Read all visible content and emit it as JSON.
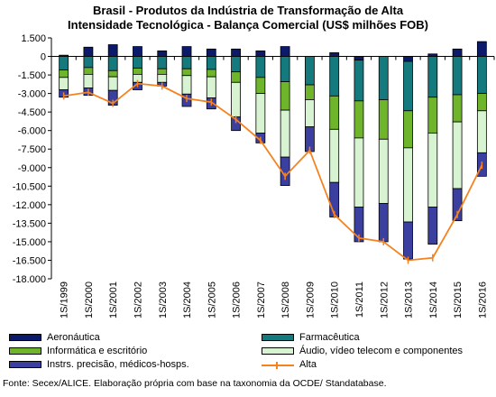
{
  "chart_data": {
    "type": "bar",
    "title": "Brasil - Produtos da Indústria de Transformação de Alta",
    "subtitle": "Intensidade Tecnológica - Balança Comercial (US$ milhões FOB)",
    "categories": [
      "1S/1999",
      "1S/2000",
      "1S/2001",
      "1S/2002",
      "1S/2003",
      "1S/2004",
      "1S/2005",
      "1S/2006",
      "1S/2007",
      "1S/2008",
      "1S/2009",
      "1S/2010",
      "1S/2011",
      "1S/2012",
      "1S/2013",
      "1S/2014",
      "1S/2015",
      "1S/2016"
    ],
    "ylim": [
      -18000,
      1500
    ],
    "yticks": [
      1500,
      0,
      -1500,
      -3000,
      -4500,
      -6000,
      -7500,
      -9000,
      -10500,
      -12000,
      -13500,
      -15000,
      -16500,
      -18000
    ],
    "ytick_labels": [
      "1.500",
      "0",
      "-1.500",
      "-3.000",
      "-4.500",
      "-6.000",
      "-7.500",
      "-9.000",
      "-10.500",
      "-12.000",
      "-13.500",
      "-15.000",
      "-16.500",
      "-18.000"
    ],
    "grid": false,
    "legend_position": "bottom",
    "series": [
      {
        "name": "Aeronáutica",
        "color": "#0b1a6b",
        "kind": "bar",
        "values": [
          100,
          750,
          950,
          800,
          450,
          800,
          600,
          600,
          450,
          800,
          0,
          300,
          -300,
          0,
          -400,
          200,
          600,
          1200
        ]
      },
      {
        "name": "Farmacêutica",
        "color": "#157a7d",
        "kind": "bar",
        "values": [
          -1100,
          -900,
          -1150,
          -950,
          -1000,
          -1000,
          -1050,
          -1250,
          -1700,
          -2050,
          -2300,
          -3200,
          -3300,
          -3500,
          -4000,
          -3300,
          -3100,
          -3000
        ]
      },
      {
        "name": "Informática e escritório",
        "color": "#6fb52c",
        "kind": "bar",
        "values": [
          -600,
          -550,
          -500,
          -500,
          -450,
          -550,
          -600,
          -850,
          -1300,
          -2300,
          -1200,
          -2700,
          -3000,
          -3200,
          -3000,
          -2900,
          -2200,
          -1400
        ]
      },
      {
        "name": "Áudio, vídeo telecom e componentes",
        "color": "#d8f3d2",
        "kind": "bar",
        "values": [
          -1000,
          -1100,
          -1100,
          -650,
          -650,
          -1500,
          -1700,
          -2800,
          -3200,
          -3800,
          -2200,
          -4300,
          -5600,
          -5200,
          -6000,
          -6000,
          -5400,
          -3400
        ]
      },
      {
        "name": "Instrs. precisão, médicos-hosps.",
        "color": "#3b3fa0",
        "kind": "bar",
        "values": [
          -600,
          -600,
          -1200,
          -600,
          -300,
          -1000,
          -900,
          -1100,
          -800,
          -2300,
          -2000,
          -2800,
          -2800,
          -3100,
          -3000,
          -3000,
          -2600,
          -1900
        ]
      },
      {
        "name": "Alta",
        "color": "#f5821f",
        "kind": "line",
        "values": [
          -3200,
          -2900,
          -3800,
          -2200,
          -2400,
          -3400,
          -3700,
          -5100,
          -6800,
          -9700,
          -7600,
          -12800,
          -14700,
          -15000,
          -16500,
          -16300,
          -12800,
          -8800
        ]
      }
    ]
  },
  "source": "Fonte: Secex/ALICE. Elaboração própria com base na taxonomia da OCDE/ Standatabase."
}
